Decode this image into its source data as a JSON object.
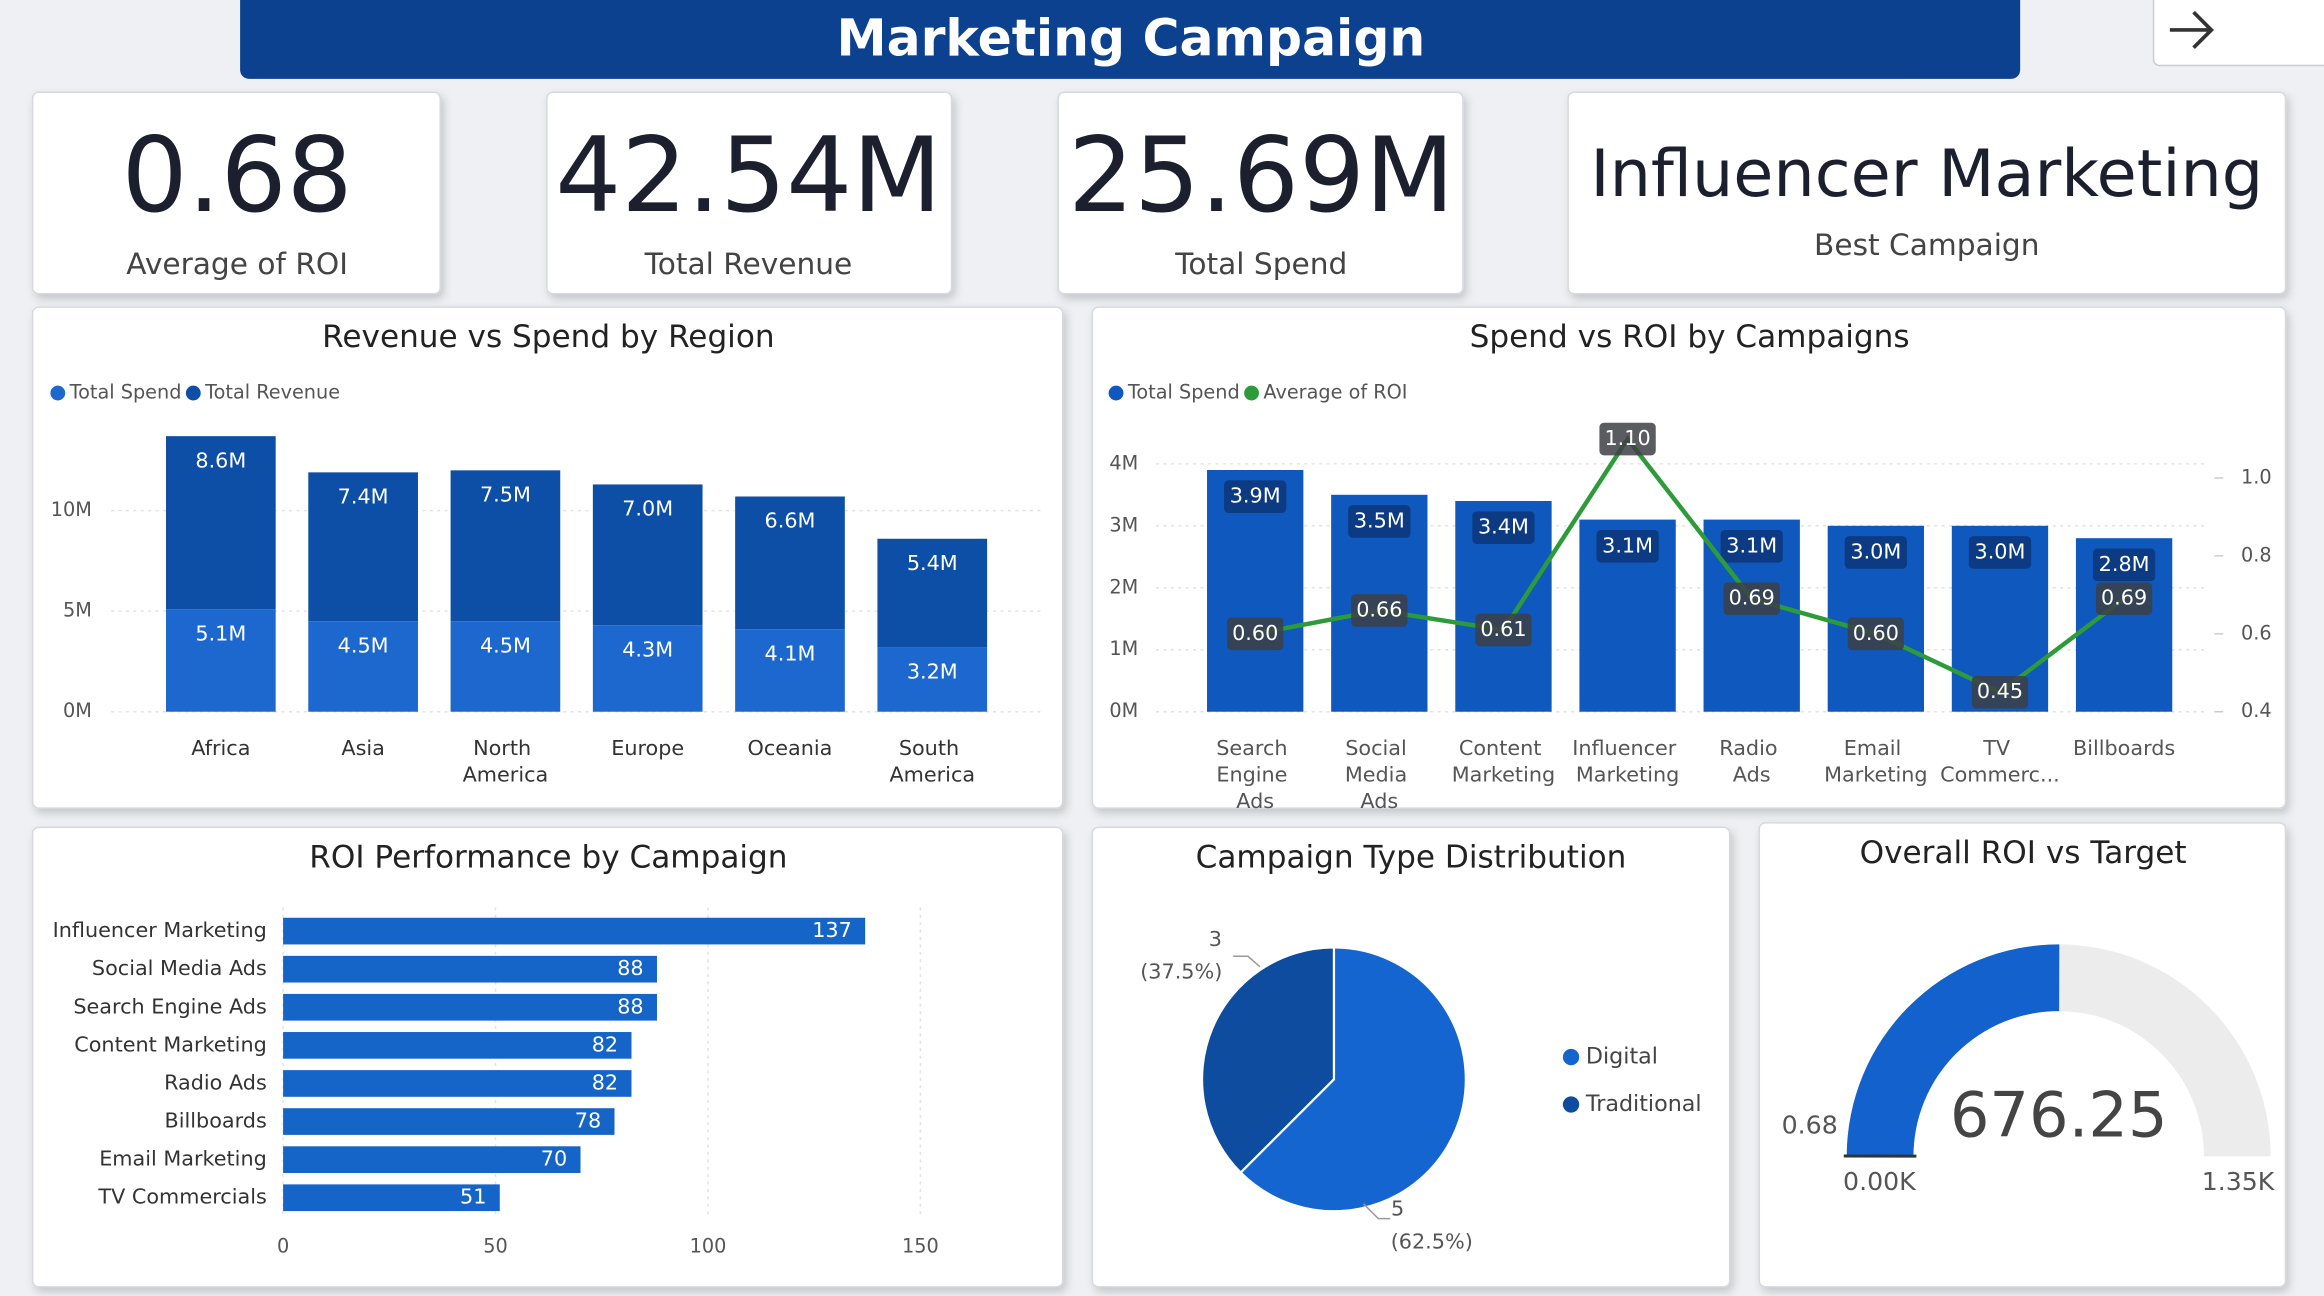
{
  "header": {
    "title": "Marketing Campaign"
  },
  "kpis": [
    {
      "value": "0.68",
      "label": "Average of ROI"
    },
    {
      "value": "42.54M",
      "label": "Total Revenue"
    },
    {
      "value": "25.69M",
      "label": "Total Spend"
    },
    {
      "value": "Influencer Marketing",
      "label": "Best Campaign"
    }
  ],
  "chart_data": [
    {
      "type": "stacked_bar",
      "title": "Revenue vs Spend by Region",
      "categories": [
        "Africa",
        "Asia",
        "North America",
        "Europe",
        "Oceania",
        "South America"
      ],
      "series": [
        {
          "name": "Total Spend",
          "color": "#1d68cf",
          "values": [
            5.1,
            4.5,
            4.5,
            4.3,
            4.1,
            3.2
          ],
          "value_labels": [
            "5.1M",
            "4.5M",
            "4.5M",
            "4.3M",
            "4.1M",
            "3.2M"
          ]
        },
        {
          "name": "Total Revenue",
          "color": "#0d4ea6",
          "values": [
            8.6,
            7.4,
            7.5,
            7.0,
            6.6,
            5.4
          ],
          "value_labels": [
            "8.6M",
            "7.4M",
            "7.5M",
            "7.0M",
            "6.6M",
            "5.4M"
          ]
        }
      ],
      "ylim": [
        0,
        14
      ],
      "yticks": [
        {
          "value": 0,
          "label": "0M"
        },
        {
          "value": 5,
          "label": "5M"
        },
        {
          "value": 10,
          "label": "10M"
        }
      ],
      "grid": true,
      "legend": "top-left"
    },
    {
      "type": "bar_line",
      "title": "Spend vs ROI by Campaigns",
      "categories": [
        "Search Engine Ads",
        "Social Media Ads",
        "Content Marketing",
        "Influencer Marketing",
        "Radio Ads",
        "Email Marketing",
        "TV Commerc...",
        "Billboards"
      ],
      "series": [
        {
          "name": "Total Spend",
          "color": "#0f58bd",
          "values": [
            3.9,
            3.5,
            3.4,
            3.1,
            3.1,
            3.0,
            3.0,
            2.8
          ],
          "value_labels": [
            "3.9M",
            "3.5M",
            "3.4M",
            "3.1M",
            "3.1M",
            "3.0M",
            "3.0M",
            "2.8M"
          ]
        },
        {
          "name": "Average of ROI",
          "color": "#2e9b3a",
          "axis": "y2",
          "values": [
            0.6,
            0.66,
            0.61,
            1.1,
            0.69,
            0.6,
            0.45,
            0.69
          ],
          "value_labels": [
            "0.60",
            "0.66",
            "0.61",
            "1.10",
            "0.69",
            "0.60",
            "0.45",
            "0.69"
          ]
        }
      ],
      "ylim": [
        0,
        4.4
      ],
      "yticks": [
        {
          "value": 0,
          "label": "0M"
        },
        {
          "value": 1,
          "label": "1M"
        },
        {
          "value": 2,
          "label": "2M"
        },
        {
          "value": 3,
          "label": "3M"
        },
        {
          "value": 4,
          "label": "4M"
        }
      ],
      "y2lim": [
        0.4,
        1.1
      ],
      "y2ticks": [
        0.4,
        0.6,
        0.8,
        {
          "value": 1,
          "label": "1.0"
        }
      ],
      "grid": true,
      "legend": "top-left"
    },
    {
      "type": "hbar",
      "title": "ROI Performance by Campaign",
      "categories": [
        "Influencer Marketing",
        "Social Media Ads",
        "Search Engine Ads",
        "Content Marketing",
        "Radio Ads",
        "Billboards",
        "Email Marketing",
        "TV Commercials"
      ],
      "values": [
        137,
        88,
        88,
        82,
        82,
        78,
        70,
        51
      ],
      "color": "#1565c8",
      "xlim": [
        0,
        150
      ],
      "xticks": [
        0,
        50,
        100,
        150
      ],
      "grid": true
    },
    {
      "type": "pie",
      "title": "Campaign Type Distribution",
      "categories": [
        "Digital",
        "Traditional"
      ],
      "values": [
        5,
        3
      ],
      "percents": [
        62.5,
        37.5
      ],
      "percent_labels": [
        "(62.5%)",
        "(37.5%)"
      ],
      "colors": [
        "#1565d0",
        "#0d4c9e"
      ],
      "legend": "right"
    },
    {
      "type": "gauge",
      "title": "Overall ROI vs Target",
      "value": 676.25,
      "min": {
        "value": 0,
        "label": "0.00K"
      },
      "max": {
        "value": 1350,
        "label": "1.35K"
      },
      "target": {
        "value": 0.68,
        "label": "0.68"
      },
      "color": "#1261cc",
      "track_color": "#ececec"
    }
  ]
}
